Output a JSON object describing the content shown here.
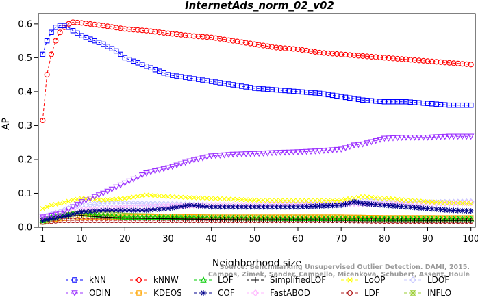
{
  "chart_data": {
    "type": "line",
    "title": "InternetAds_norm_02_v02",
    "xlabel": "Neighborhood size",
    "ylabel": "AP",
    "xlim": [
      0,
      101
    ],
    "ylim": [
      0,
      0.63
    ],
    "xticks": [
      1,
      10,
      20,
      30,
      40,
      50,
      60,
      70,
      80,
      90,
      100
    ],
    "yticks": [
      0.0,
      0.1,
      0.2,
      0.3,
      0.4,
      0.5,
      0.6
    ],
    "ytick_labels": [
      "0.0",
      "0.1",
      "0.2",
      "0.3",
      "0.4",
      "0.5",
      "0.6"
    ],
    "grid": false,
    "legend_position": "bottom",
    "watermark": [
      "Source: Benchmarking Unsupervised Outlier Detection. DAMI, 2015.",
      "Campos, Zimek, Sander, Campello, Micenkova, Schubert, Assent, Houle"
    ],
    "series": [
      {
        "name": "kNN",
        "color": "#0000ff",
        "marker": "square",
        "points": [
          [
            1,
            0.51
          ],
          [
            2,
            0.55
          ],
          [
            3,
            0.575
          ],
          [
            4,
            0.59
          ],
          [
            5,
            0.595
          ],
          [
            6,
            0.595
          ],
          [
            7,
            0.59
          ],
          [
            8,
            0.58
          ],
          [
            10,
            0.565
          ],
          [
            12,
            0.555
          ],
          [
            15,
            0.54
          ],
          [
            18,
            0.52
          ],
          [
            20,
            0.5
          ],
          [
            23,
            0.485
          ],
          [
            25,
            0.475
          ],
          [
            28,
            0.46
          ],
          [
            30,
            0.45
          ],
          [
            35,
            0.44
          ],
          [
            40,
            0.43
          ],
          [
            45,
            0.42
          ],
          [
            50,
            0.41
          ],
          [
            55,
            0.405
          ],
          [
            60,
            0.4
          ],
          [
            65,
            0.395
          ],
          [
            70,
            0.385
          ],
          [
            75,
            0.375
          ],
          [
            80,
            0.37
          ],
          [
            85,
            0.37
          ],
          [
            90,
            0.365
          ],
          [
            95,
            0.36
          ],
          [
            100,
            0.36
          ]
        ]
      },
      {
        "name": "kNNW",
        "color": "#ff0000",
        "marker": "circle",
        "points": [
          [
            1,
            0.315
          ],
          [
            2,
            0.45
          ],
          [
            3,
            0.51
          ],
          [
            4,
            0.55
          ],
          [
            5,
            0.575
          ],
          [
            6,
            0.59
          ],
          [
            7,
            0.6
          ],
          [
            8,
            0.605
          ],
          [
            10,
            0.603
          ],
          [
            15,
            0.595
          ],
          [
            20,
            0.585
          ],
          [
            25,
            0.58
          ],
          [
            30,
            0.572
          ],
          [
            35,
            0.565
          ],
          [
            40,
            0.56
          ],
          [
            45,
            0.55
          ],
          [
            50,
            0.54
          ],
          [
            55,
            0.53
          ],
          [
            60,
            0.525
          ],
          [
            65,
            0.515
          ],
          [
            70,
            0.51
          ],
          [
            75,
            0.505
          ],
          [
            80,
            0.5
          ],
          [
            85,
            0.495
          ],
          [
            90,
            0.49
          ],
          [
            95,
            0.485
          ],
          [
            100,
            0.48
          ]
        ]
      },
      {
        "name": "LOF",
        "color": "#00cc00",
        "marker": "triangle-up",
        "points": [
          [
            1,
            0.02
          ],
          [
            3,
            0.03
          ],
          [
            5,
            0.035
          ],
          [
            8,
            0.04
          ],
          [
            10,
            0.04
          ],
          [
            15,
            0.035
          ],
          [
            20,
            0.03
          ],
          [
            30,
            0.03
          ],
          [
            40,
            0.028
          ],
          [
            50,
            0.027
          ],
          [
            60,
            0.026
          ],
          [
            70,
            0.026
          ],
          [
            80,
            0.025
          ],
          [
            90,
            0.025
          ],
          [
            100,
            0.025
          ]
        ]
      },
      {
        "name": "SimplifiedLOF",
        "color": "#000000",
        "marker": "plus",
        "points": [
          [
            1,
            0.02
          ],
          [
            3,
            0.025
          ],
          [
            5,
            0.03
          ],
          [
            8,
            0.033
          ],
          [
            10,
            0.035
          ],
          [
            15,
            0.03
          ],
          [
            20,
            0.027
          ],
          [
            30,
            0.025
          ],
          [
            40,
            0.023
          ],
          [
            50,
            0.022
          ],
          [
            60,
            0.022
          ],
          [
            70,
            0.021
          ],
          [
            80,
            0.021
          ],
          [
            90,
            0.02
          ],
          [
            100,
            0.02
          ]
        ]
      },
      {
        "name": "LoOP",
        "color": "#ffff00",
        "marker": "x",
        "points": [
          [
            1,
            0.055
          ],
          [
            3,
            0.065
          ],
          [
            5,
            0.07
          ],
          [
            8,
            0.08
          ],
          [
            10,
            0.085
          ],
          [
            15,
            0.08
          ],
          [
            20,
            0.085
          ],
          [
            25,
            0.095
          ],
          [
            30,
            0.09
          ],
          [
            40,
            0.085
          ],
          [
            50,
            0.08
          ],
          [
            60,
            0.078
          ],
          [
            70,
            0.08
          ],
          [
            75,
            0.09
          ],
          [
            80,
            0.085
          ],
          [
            90,
            0.075
          ],
          [
            100,
            0.07
          ]
        ]
      },
      {
        "name": "LDOF",
        "color": "#c8c8ff",
        "marker": "diamond",
        "points": [
          [
            1,
            0.03
          ],
          [
            5,
            0.045
          ],
          [
            8,
            0.06
          ],
          [
            10,
            0.065
          ],
          [
            15,
            0.07
          ],
          [
            20,
            0.07
          ],
          [
            30,
            0.068
          ],
          [
            40,
            0.065
          ],
          [
            50,
            0.065
          ],
          [
            60,
            0.065
          ],
          [
            70,
            0.065
          ],
          [
            75,
            0.075
          ],
          [
            80,
            0.075
          ],
          [
            90,
            0.072
          ],
          [
            100,
            0.075
          ]
        ]
      },
      {
        "name": "ODIN",
        "color": "#9b30ff",
        "marker": "triangle-down",
        "points": [
          [
            1,
            0.03
          ],
          [
            5,
            0.04
          ],
          [
            8,
            0.06
          ],
          [
            10,
            0.075
          ],
          [
            15,
            0.1
          ],
          [
            20,
            0.13
          ],
          [
            25,
            0.16
          ],
          [
            30,
            0.175
          ],
          [
            35,
            0.195
          ],
          [
            40,
            0.21
          ],
          [
            45,
            0.215
          ],
          [
            50,
            0.217
          ],
          [
            55,
            0.22
          ],
          [
            60,
            0.222
          ],
          [
            65,
            0.225
          ],
          [
            70,
            0.23
          ],
          [
            73,
            0.242
          ],
          [
            75,
            0.245
          ],
          [
            80,
            0.262
          ],
          [
            85,
            0.265
          ],
          [
            90,
            0.265
          ],
          [
            95,
            0.268
          ],
          [
            100,
            0.268
          ]
        ]
      },
      {
        "name": "KDEOS",
        "color": "#ffa500",
        "marker": "square",
        "points": [
          [
            1,
            0.02
          ],
          [
            5,
            0.025
          ],
          [
            10,
            0.03
          ],
          [
            20,
            0.03
          ],
          [
            30,
            0.032
          ],
          [
            40,
            0.03
          ],
          [
            50,
            0.03
          ],
          [
            60,
            0.03
          ],
          [
            70,
            0.03
          ],
          [
            80,
            0.028
          ],
          [
            90,
            0.028
          ],
          [
            100,
            0.028
          ]
        ]
      },
      {
        "name": "COF",
        "color": "#00008b",
        "marker": "asterisk",
        "points": [
          [
            1,
            0.02
          ],
          [
            5,
            0.03
          ],
          [
            10,
            0.045
          ],
          [
            15,
            0.05
          ],
          [
            20,
            0.05
          ],
          [
            25,
            0.05
          ],
          [
            30,
            0.055
          ],
          [
            35,
            0.065
          ],
          [
            40,
            0.06
          ],
          [
            50,
            0.06
          ],
          [
            60,
            0.06
          ],
          [
            70,
            0.065
          ],
          [
            73,
            0.075
          ],
          [
            75,
            0.07
          ],
          [
            80,
            0.065
          ],
          [
            85,
            0.06
          ],
          [
            90,
            0.055
          ],
          [
            95,
            0.05
          ],
          [
            100,
            0.048
          ]
        ]
      },
      {
        "name": "FastABOD",
        "color": "#ffb6ff",
        "marker": "diamond",
        "points": [
          [
            1,
            0.03
          ],
          [
            5,
            0.04
          ],
          [
            10,
            0.05
          ],
          [
            20,
            0.058
          ],
          [
            30,
            0.062
          ],
          [
            40,
            0.065
          ],
          [
            50,
            0.065
          ],
          [
            60,
            0.068
          ],
          [
            70,
            0.07
          ],
          [
            80,
            0.07
          ],
          [
            90,
            0.07
          ],
          [
            100,
            0.072
          ]
        ]
      },
      {
        "name": "LDF",
        "color": "#b22222",
        "marker": "circle",
        "points": [
          [
            1,
            0.015
          ],
          [
            5,
            0.02
          ],
          [
            10,
            0.02
          ],
          [
            20,
            0.02
          ],
          [
            30,
            0.02
          ],
          [
            40,
            0.02
          ],
          [
            50,
            0.02
          ],
          [
            60,
            0.02
          ],
          [
            70,
            0.02
          ],
          [
            80,
            0.018
          ],
          [
            90,
            0.018
          ],
          [
            100,
            0.018
          ]
        ]
      },
      {
        "name": "INFLO",
        "color": "#9acd32",
        "marker": "hourglass",
        "points": [
          [
            1,
            0.015
          ],
          [
            5,
            0.03
          ],
          [
            8,
            0.04
          ],
          [
            10,
            0.042
          ],
          [
            15,
            0.04
          ],
          [
            20,
            0.035
          ],
          [
            30,
            0.032
          ],
          [
            40,
            0.03
          ],
          [
            50,
            0.03
          ],
          [
            60,
            0.03
          ],
          [
            70,
            0.03
          ],
          [
            80,
            0.028
          ],
          [
            90,
            0.028
          ],
          [
            100,
            0.027
          ]
        ]
      }
    ]
  }
}
